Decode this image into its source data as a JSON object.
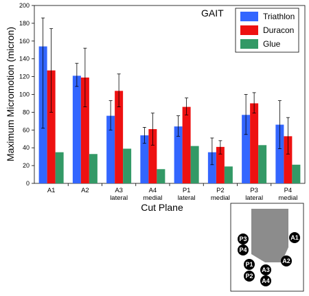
{
  "chart_data": {
    "type": "bar",
    "title": "GAIT",
    "xlabel": "Cut Plane",
    "ylabel": "Maximum Micromotion (micron)",
    "ylim": [
      0,
      200
    ],
    "yticks": [
      0,
      20,
      40,
      60,
      80,
      100,
      120,
      140,
      160,
      180,
      200
    ],
    "categories": [
      [
        "A1"
      ],
      [
        "A2"
      ],
      [
        "A3",
        "lateral"
      ],
      [
        "A4",
        "medial"
      ],
      [
        "P1",
        "lateral"
      ],
      [
        "P2",
        "medial"
      ],
      [
        "P3",
        "lateral"
      ],
      [
        "P4",
        "medial"
      ]
    ],
    "series": [
      {
        "name": "Triathlon",
        "color": "#3366ff",
        "values": [
          154,
          121,
          76,
          54,
          64,
          35,
          77,
          66
        ],
        "err_low": [
          62,
          109,
          60,
          45,
          53,
          21,
          55,
          39
        ],
        "err_high": [
          186,
          135,
          93,
          63,
          76,
          51,
          100,
          93
        ]
      },
      {
        "name": "Duracon",
        "color": "#ee1111",
        "values": [
          127,
          119,
          104,
          61,
          86,
          41,
          90,
          53
        ],
        "err_low": [
          80,
          86,
          86,
          43,
          77,
          33,
          79,
          33
        ],
        "err_high": [
          174,
          152,
          123,
          79,
          96,
          48,
          102,
          74
        ]
      },
      {
        "name": "Glue",
        "color": "#339966",
        "values": [
          35,
          33,
          39,
          16,
          42,
          19,
          43,
          21
        ]
      }
    ],
    "legend_position": "top-right",
    "grid": false
  },
  "inset": {
    "labels": [
      "A1",
      "A2",
      "A3",
      "A4",
      "P1",
      "P2",
      "P3",
      "P4"
    ],
    "marker_color": "#000000",
    "shape_color": "#8c8c8c"
  }
}
